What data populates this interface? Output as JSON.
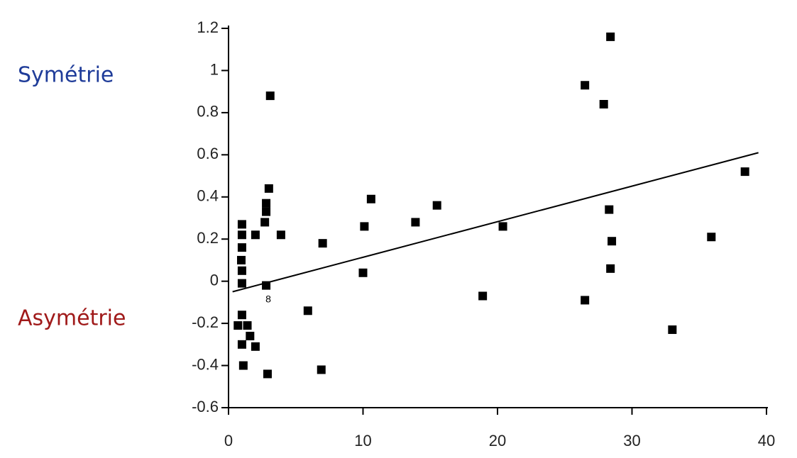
{
  "chart_data": {
    "type": "scatter",
    "x": [
      28.4,
      26.5,
      27.9,
      3.1,
      38.4,
      3.0,
      2.8,
      2.8,
      2.7,
      10.6,
      15.5,
      13.9,
      10.1,
      20.4,
      28.3,
      35.9,
      28.5,
      28.4,
      26.5,
      18.9,
      33.0,
      10.0,
      7.0,
      3.9,
      2.0,
      1.0,
      1.0,
      1.0,
      0.95,
      1.0,
      1.0,
      2.8,
      5.9,
      1.0,
      0.7,
      1.4,
      1.6,
      1.0,
      2.0,
      1.1,
      2.9,
      6.9
    ],
    "values": [
      1.16,
      0.93,
      0.84,
      0.88,
      0.52,
      0.44,
      0.37,
      0.33,
      0.28,
      0.39,
      0.36,
      0.28,
      0.26,
      0.26,
      0.34,
      0.21,
      0.19,
      0.06,
      -0.09,
      -0.07,
      -0.23,
      0.04,
      0.18,
      0.22,
      0.22,
      0.27,
      0.22,
      0.16,
      0.1,
      0.05,
      -0.01,
      -0.02,
      -0.14,
      -0.16,
      -0.21,
      -0.21,
      -0.26,
      -0.3,
      -0.31,
      -0.4,
      -0.44,
      -0.42
    ],
    "color": "#000000",
    "trendline": {
      "x": [
        0.3,
        39.4
      ],
      "y": [
        -0.05,
        0.61
      ]
    },
    "xlim": [
      0,
      40
    ],
    "xticks": [
      0,
      10,
      20,
      30,
      40
    ],
    "ylim": [
      -0.6,
      1.2
    ],
    "yticks": [
      -0.6,
      -0.4,
      -0.2,
      0,
      0.2,
      0.4,
      0.6,
      0.8,
      1,
      1.2
    ],
    "annotations": [
      {
        "text": "Symétrie",
        "color": "#1f3c99"
      },
      {
        "text": "Asymétrie",
        "color": "#a01a1a"
      },
      {
        "text": "8",
        "color": "#000000"
      }
    ]
  }
}
